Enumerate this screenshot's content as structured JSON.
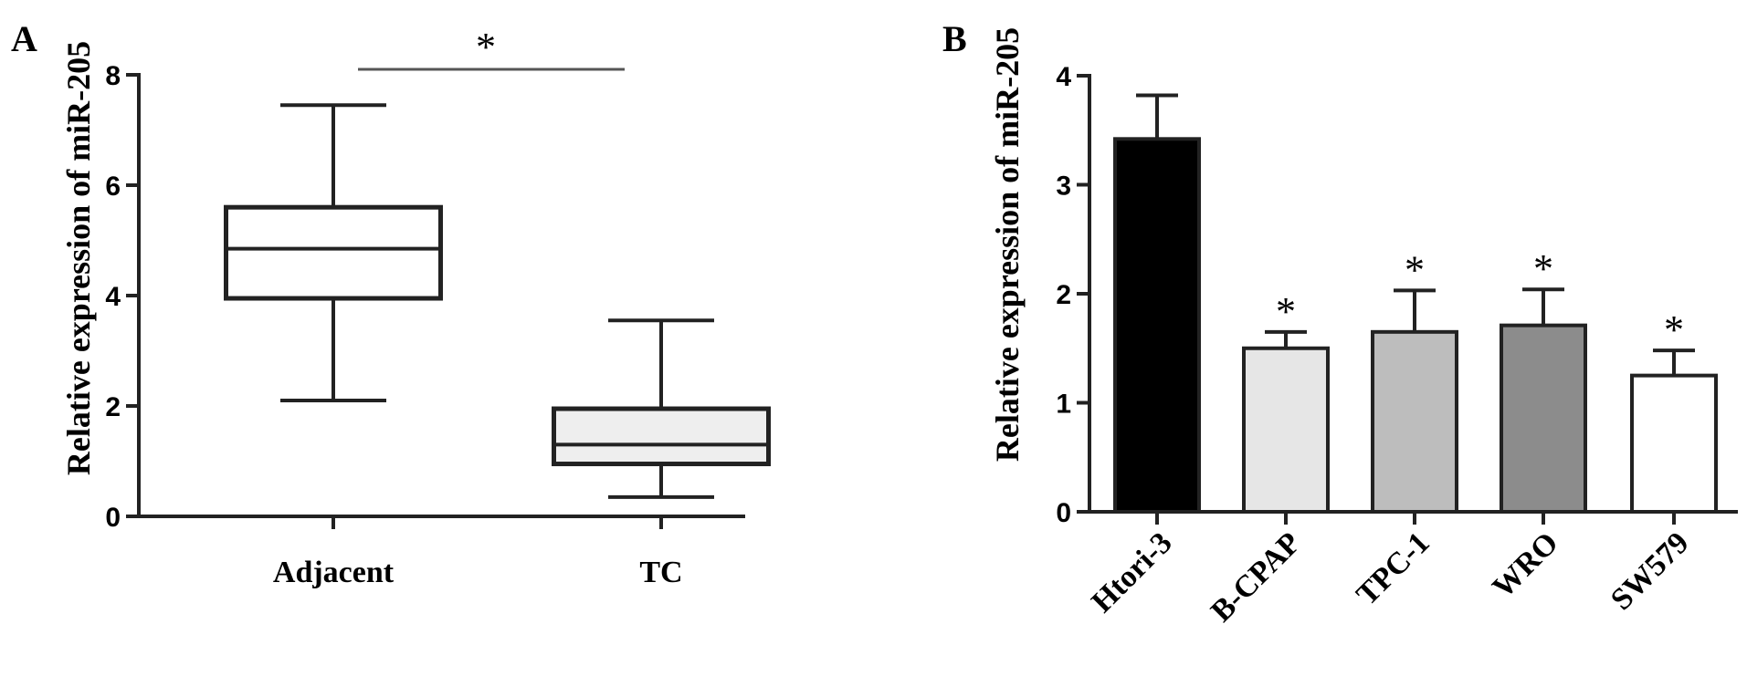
{
  "chart_data": [
    {
      "panel": "A",
      "type": "box",
      "ylabel": "Relative expression of miR-205",
      "ylim": [
        0,
        8
      ],
      "yticks": [
        "0",
        "2",
        "4",
        "6",
        "8"
      ],
      "categories": [
        "Adjacent",
        "TC"
      ],
      "boxes": [
        {
          "category": "Adjacent",
          "min": 2.1,
          "q1": 3.95,
          "median": 4.85,
          "q3": 5.6,
          "max": 7.45,
          "fill": "#ffffff"
        },
        {
          "category": "TC",
          "min": 0.35,
          "q1": 0.95,
          "median": 1.3,
          "q3": 1.95,
          "max": 3.55,
          "fill": "#eeeeee"
        }
      ],
      "significance": {
        "between": [
          "Adjacent",
          "TC"
        ],
        "label": "*"
      }
    },
    {
      "panel": "B",
      "type": "bar",
      "ylabel": "Relative expression of miR-205",
      "ylim": [
        0,
        4
      ],
      "yticks": [
        "0",
        "1",
        "2",
        "3",
        "4"
      ],
      "categories": [
        "Htori-3",
        "B-CPAP",
        "TPC-1",
        "WRO",
        "SW579"
      ],
      "values": [
        3.42,
        1.5,
        1.65,
        1.71,
        1.25
      ],
      "errors": [
        0.4,
        0.15,
        0.38,
        0.33,
        0.23
      ],
      "significance": [
        "",
        "*",
        "*",
        "*",
        "*"
      ],
      "colors": [
        "#000000",
        "#e6e6e6",
        "#bdbdbd",
        "#8c8c8c",
        "#ffffff"
      ]
    }
  ]
}
